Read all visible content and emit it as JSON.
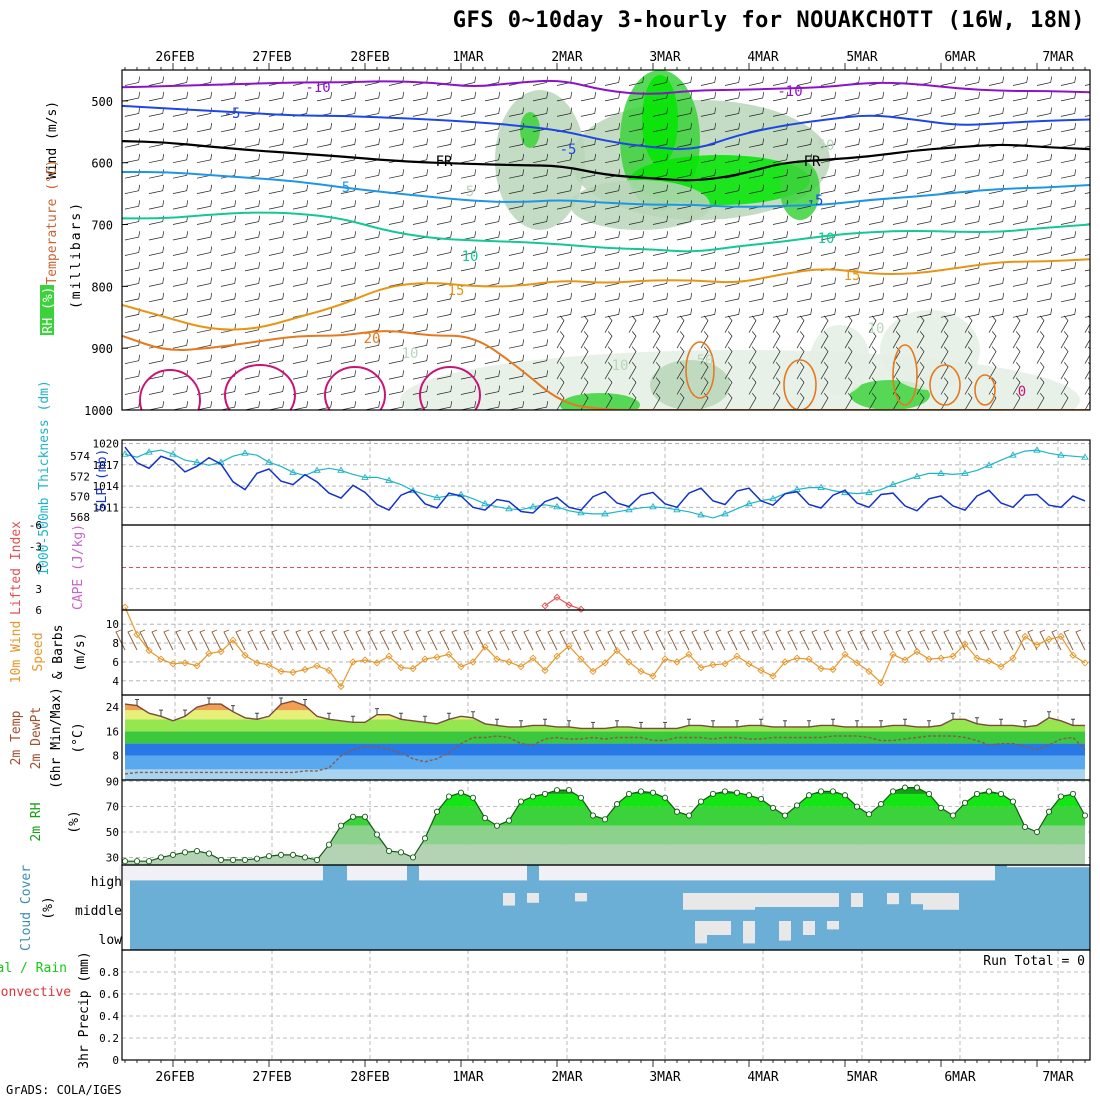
{
  "title": "GFS 0~10day 3-hourly for NOUAKCHOTT (16W, 18N)",
  "credit": "GrADS: COLA/IGES",
  "colors": {
    "temp_m10": "#8c14c8",
    "temp_m5": "#1e46e6",
    "temp_fr": "#000000",
    "temp_p5": "#1e96e6",
    "temp_p10": "#14c896",
    "temp_p15": "#e69614",
    "temp_p20": "#e6781e",
    "temp_p25": "#c81478",
    "rh_light": "#e4eee4",
    "rh_mid": "#b8d6b8",
    "rh_green": "#3cd23c",
    "rh_bright": "#00e600",
    "slp": "#1432c8",
    "thickness": "#1eb4c8",
    "wind": "#e69628",
    "cloud": "#6baed6",
    "cloud_gap": "#f0f0f6",
    "cape": "#c864c8"
  },
  "x_axis": {
    "dates": [
      "26FEB",
      "27FEB",
      "28FEB",
      "1MAR",
      "2MAR",
      "3MAR",
      "4MAR",
      "5MAR",
      "6MAR",
      "7MAR"
    ]
  },
  "panels": {
    "upper": {
      "ylabel_parts": [
        "Wind (m/s)",
        "Temperature (°C)",
        "RH (%)"
      ],
      "unit_label": "(millibars)",
      "y_ticks": [
        "500",
        "600",
        "700",
        "800",
        "900",
        "1000"
      ]
    },
    "slp": {
      "ylabel_slp": "SLP (mb)",
      "ylabel_thk": "1000-500mb Thickness (dm)",
      "slp_ticks": [
        "1020",
        "1017",
        "1014",
        "1011"
      ],
      "thk_ticks": [
        "574",
        "572",
        "570",
        "568"
      ]
    },
    "cape": {
      "ylabel_li": "Lifted Index",
      "ylabel_cape": "CAPE (J/kg)",
      "ticks": [
        "-6",
        "-3",
        "0",
        "3",
        "6"
      ]
    },
    "wind": {
      "ylabel_a": "10m Wind",
      "ylabel_b": "Speed",
      "ylabel_c": "& Barbs",
      "unit": "(m/s)",
      "ticks": [
        "10",
        "8",
        "6",
        "4"
      ]
    },
    "temp": {
      "ylabel_a": "2m Temp",
      "ylabel_b": "2m DewPt",
      "ylabel_c": "(6hr Min/Max)",
      "unit": "(°C)",
      "ticks": [
        "24",
        "16",
        "8"
      ]
    },
    "rh": {
      "ylabel": "2m RH",
      "unit": "(%)",
      "ticks": [
        "90",
        "70",
        "50",
        "30"
      ]
    },
    "cloud": {
      "ylabel": "Cloud Cover",
      "unit": "(%)",
      "levels": [
        "high",
        "middle",
        "low"
      ]
    },
    "precip": {
      "ylabel_a": "Total / Rain",
      "ylabel_b": "Convective",
      "ylabel_c": "3hr Precip (mm)",
      "ticks": [
        "0.8",
        "0.6",
        "0.4",
        "0.2",
        "0"
      ],
      "run_total": "Run Total = 0"
    }
  },
  "contour_labels": [
    {
      "text": "-10"
    },
    {
      "text": "-10"
    },
    {
      "text": "-5"
    },
    {
      "text": "-5"
    },
    {
      "text": "-5"
    },
    {
      "text": "FR"
    },
    {
      "text": "FR"
    },
    {
      "text": "5"
    },
    {
      "text": "5"
    },
    {
      "text": "10"
    },
    {
      "text": "10"
    },
    {
      "text": "15"
    },
    {
      "text": "15"
    },
    {
      "text": "20"
    },
    {
      "text": "10"
    },
    {
      "text": "50"
    },
    {
      "text": "50"
    },
    {
      "text": "10"
    },
    {
      "text": "10"
    },
    {
      "text": "0"
    }
  ],
  "chart_data": {
    "type": "line",
    "time_start": "2026-02-25 12Z",
    "x_ticks": [
      "26FEB",
      "27FEB",
      "28FEB",
      "1MAR",
      "2MAR",
      "3MAR",
      "4MAR",
      "5MAR",
      "6MAR",
      "7MAR"
    ],
    "series": [
      {
        "name": "SLP (mb)",
        "ylim": [
          1008.5,
          1020.5
        ],
        "values": [
          1019.5,
          1017.3,
          1016.5,
          1018.2,
          1017.6,
          1016.0,
          1016.8,
          1018.0,
          1017.1,
          1014.6,
          1013.5,
          1015.8,
          1016.4,
          1014.7,
          1014.2,
          1015.6,
          1014.6,
          1013.0,
          1012.3,
          1014.1,
          1013.1,
          1011.4,
          1010.6,
          1012.7,
          1013.4,
          1011.5,
          1010.9,
          1013.0,
          1012.6,
          1011.0,
          1010.6,
          1012.1,
          1011.8,
          1010.4,
          1010.2,
          1011.8,
          1012.4,
          1011.0,
          1010.6,
          1012.5,
          1013.2,
          1011.6,
          1011.1,
          1012.7,
          1013.1,
          1011.5,
          1011.0,
          1013.0,
          1013.7,
          1011.9,
          1011.4,
          1013.3,
          1013.7,
          1011.9,
          1011.3,
          1012.9,
          1013.2,
          1011.4,
          1010.9,
          1012.7,
          1013.4,
          1011.6,
          1011.0,
          1012.8,
          1013.0,
          1011.2,
          1010.5,
          1012.2,
          1012.6,
          1011.2,
          1010.6,
          1012.6,
          1013.4,
          1011.6,
          1011.0,
          1012.7,
          1012.8,
          1011.3,
          1011.0,
          1012.6,
          1011.9
        ]
      },
      {
        "name": "1000-500mb Thickness (dm)",
        "ylim": [
          567.2,
          575.6
        ],
        "values": [
          574.2,
          573.9,
          574.4,
          574.6,
          574.2,
          573.6,
          573.4,
          573.1,
          573.4,
          574.0,
          574.3,
          574.1,
          573.4,
          573.0,
          572.4,
          572.1,
          572.6,
          572.8,
          572.6,
          572.2,
          571.9,
          571.9,
          571.6,
          571.2,
          570.6,
          570.2,
          569.9,
          570.1,
          570.2,
          569.8,
          569.3,
          569.0,
          568.8,
          568.7,
          569.0,
          569.2,
          569.0,
          568.6,
          568.4,
          568.3,
          568.3,
          568.5,
          568.7,
          568.9,
          569.0,
          568.9,
          568.7,
          568.5,
          568.2,
          567.9,
          568.3,
          568.8,
          569.3,
          569.6,
          569.8,
          570.3,
          570.7,
          570.9,
          570.9,
          570.6,
          570.4,
          570.3,
          570.4,
          570.7,
          571.2,
          571.6,
          572.0,
          572.3,
          572.3,
          572.2,
          572.3,
          572.6,
          573.1,
          573.6,
          574.1,
          574.5,
          574.6,
          574.3,
          574.1,
          574.0,
          573.9
        ]
      },
      {
        "name": "Lifted Index",
        "ylim": [
          6,
          -6
        ],
        "values": [
          null,
          null,
          null,
          null,
          null,
          null,
          null,
          null,
          null,
          null,
          null,
          null,
          null,
          null,
          null,
          null,
          null,
          null,
          null,
          null,
          null,
          null,
          null,
          null,
          null,
          null,
          null,
          null,
          null,
          null,
          null,
          null,
          null,
          null,
          null,
          5.4,
          4.2,
          5.3,
          5.9,
          null,
          null,
          null,
          null,
          null,
          null,
          null,
          null,
          null,
          null,
          null,
          null,
          null,
          null,
          null,
          null,
          null,
          null,
          null,
          null,
          null,
          null,
          null,
          null,
          null,
          null,
          null,
          null,
          null,
          null,
          null,
          null,
          null,
          null,
          null,
          null,
          null,
          null,
          null,
          null,
          null,
          null
        ]
      },
      {
        "name": "10m Wind Speed (m/s)",
        "ylim": [
          2.5,
          11.5
        ],
        "values": [
          11.8,
          8.9,
          7.2,
          6.3,
          5.8,
          5.9,
          5.6,
          6.9,
          7.1,
          8.3,
          6.7,
          5.9,
          5.7,
          5.0,
          4.9,
          5.2,
          5.6,
          5.1,
          3.4,
          6.0,
          6.2,
          5.9,
          6.6,
          5.4,
          5.3,
          6.3,
          6.5,
          6.8,
          5.5,
          6.0,
          7.6,
          6.3,
          6.0,
          5.5,
          6.4,
          5.1,
          6.6,
          7.7,
          6.3,
          5.0,
          5.9,
          7.2,
          6.0,
          5.0,
          4.5,
          6.3,
          6.0,
          6.8,
          5.4,
          5.7,
          5.8,
          6.6,
          5.8,
          5.1,
          4.5,
          6.0,
          6.4,
          6.3,
          5.3,
          5.2,
          6.8,
          5.9,
          5.0,
          3.8,
          6.8,
          6.2,
          7.1,
          6.3,
          6.4,
          6.6,
          7.9,
          6.4,
          6.1,
          5.5,
          6.4,
          8.7,
          7.8,
          8.4,
          8.7,
          6.7,
          5.9
        ]
      },
      {
        "name": "2m Temp (°C)",
        "ylim": [
          0,
          28
        ],
        "values": [
          25,
          24.5,
          22,
          21,
          19.5,
          21,
          24,
          25,
          25,
          22.5,
          20.5,
          20,
          21,
          25,
          26,
          24.5,
          21,
          20,
          19.5,
          19,
          19,
          21.5,
          21.5,
          20,
          19.5,
          19,
          18.5,
          20,
          21,
          20.5,
          18.5,
          18,
          17.5,
          17.5,
          18,
          18,
          17.5,
          17.5,
          17,
          17,
          17,
          17.5,
          17.5,
          17,
          17,
          17,
          17,
          18,
          18,
          17.5,
          17.5,
          17.5,
          18,
          18,
          17.5,
          17.5,
          17.5,
          17.5,
          18,
          18,
          17.5,
          17.5,
          17.5,
          17.5,
          18,
          18,
          17.5,
          17.5,
          18,
          20,
          20,
          18.5,
          18,
          18,
          18,
          17.5,
          18,
          20.5,
          19.5,
          18,
          18
        ]
      },
      {
        "name": "2m DewPt (°C)",
        "ylim": [
          0,
          28
        ],
        "values": [
          2,
          2.5,
          2.5,
          2.5,
          2.5,
          2.5,
          2.5,
          2.5,
          2.5,
          2.5,
          2.5,
          2.5,
          2.5,
          2.5,
          2.5,
          3,
          3,
          4,
          8,
          10,
          11,
          11,
          10,
          9,
          7,
          6,
          7,
          9,
          12,
          14,
          14,
          14.5,
          14,
          12,
          11.5,
          13.5,
          14,
          13.5,
          13.5,
          14,
          13.5,
          14,
          14,
          14,
          13,
          13,
          14,
          14,
          14,
          13.5,
          14,
          14,
          13.5,
          13.5,
          14,
          14,
          14,
          14,
          14,
          14.5,
          14.5,
          14.5,
          14,
          13,
          13,
          13.5,
          14,
          14.5,
          14.5,
          14.5,
          14,
          13,
          11.5,
          12,
          12,
          11,
          10,
          11.5,
          13.5,
          14,
          10
        ]
      },
      {
        "name": "2m RH (%)",
        "ylim": [
          24,
          91
        ],
        "values": [
          27,
          27,
          27,
          30,
          32,
          34,
          35,
          33,
          28,
          28,
          28,
          29,
          31,
          32,
          32,
          30,
          28,
          40,
          55,
          62,
          62,
          48,
          35,
          34,
          30,
          45,
          66,
          78,
          81,
          77,
          61,
          55,
          59,
          74,
          78,
          80,
          83,
          83,
          77,
          63,
          60,
          72,
          80,
          82,
          81,
          77,
          66,
          63,
          74,
          80,
          82,
          81,
          79,
          76,
          69,
          63,
          71,
          79,
          82,
          82,
          79,
          70,
          64,
          72,
          82,
          85,
          85,
          80,
          69,
          63,
          73,
          80,
          82,
          80,
          74,
          54,
          50,
          66,
          78,
          80,
          63
        ]
      },
      {
        "name": "3hr Precip (mm)",
        "ylim": [
          0,
          1
        ],
        "values": [
          0,
          0,
          0,
          0,
          0,
          0,
          0,
          0,
          0,
          0,
          0,
          0,
          0,
          0,
          0,
          0,
          0,
          0,
          0,
          0,
          0,
          0,
          0,
          0,
          0,
          0,
          0,
          0,
          0,
          0,
          0,
          0,
          0,
          0,
          0,
          0,
          0,
          0,
          0,
          0,
          0,
          0,
          0,
          0,
          0,
          0,
          0,
          0,
          0,
          0,
          0,
          0,
          0,
          0,
          0,
          0,
          0,
          0,
          0,
          0,
          0,
          0,
          0,
          0,
          0,
          0,
          0,
          0,
          0,
          0,
          0,
          0,
          0,
          0,
          0,
          0,
          0,
          0,
          0,
          0,
          0
        ]
      }
    ],
    "cloud_cover": {
      "levels": [
        "high",
        "middle",
        "low"
      ],
      "gaps": {
        "high": [
          [
            0,
            17,
            0.55
          ],
          [
            19,
            22,
            0.55
          ],
          [
            22,
            24,
            0.55
          ],
          [
            25,
            34,
            0.55
          ],
          [
            35,
            73,
            0.55
          ],
          [
            74,
            81,
            0.08
          ]
        ],
        "middle": [
          [
            32,
            33,
            0.45
          ],
          [
            34,
            35,
            0.35
          ],
          [
            38,
            39,
            0.3
          ],
          [
            47,
            53,
            0.6
          ],
          [
            53,
            60,
            0.5
          ],
          [
            61,
            62,
            0.5
          ],
          [
            64,
            65,
            0.4
          ],
          [
            66,
            67,
            0.4
          ],
          [
            67,
            70,
            0.6
          ]
        ],
        "low": [
          [
            48,
            49,
            0.8
          ],
          [
            49,
            51,
            0.5
          ],
          [
            52,
            53,
            0.8
          ],
          [
            55,
            56,
            0.7
          ],
          [
            57,
            58,
            0.5
          ],
          [
            59,
            60,
            0.3
          ]
        ]
      }
    },
    "upper_air": {
      "pressure_levels": [
        500,
        600,
        700,
        800,
        900,
        1000
      ],
      "isotherms": [
        {
          "label": "-10",
          "color": "#8c14c8",
          "values": [
            478,
            476,
            474,
            472,
            470,
            470,
            468,
            470,
            478,
            470,
            466,
            484,
            490,
            483,
            482,
            480,
            478,
            470,
            472,
            480,
            484,
            484,
            486
          ]
        },
        {
          "label": "-5",
          "color": "#1e46e6",
          "values": [
            508,
            512,
            516,
            520,
            524,
            524,
            527,
            530,
            534,
            540,
            548,
            565,
            575,
            580,
            555,
            540,
            530,
            522,
            530,
            540,
            536,
            532,
            530
          ]
        },
        {
          "label": "FR",
          "color": "#000000",
          "values": [
            565,
            567,
            574,
            580,
            585,
            590,
            596,
            600,
            602,
            604,
            605,
            620,
            625,
            630,
            620,
            600,
            595,
            590,
            580,
            575,
            570,
            575,
            578
          ]
        },
        {
          "label": "5",
          "color": "#1e96e6",
          "values": [
            615,
            615,
            620,
            625,
            630,
            640,
            648,
            655,
            662,
            664,
            660,
            665,
            668,
            668,
            672,
            670,
            668,
            660,
            655,
            648,
            642,
            640,
            636
          ]
        },
        {
          "label": "10",
          "color": "#14c896",
          "values": [
            690,
            690,
            684,
            680,
            682,
            690,
            710,
            722,
            726,
            728,
            732,
            738,
            740,
            745,
            735,
            728,
            718,
            712,
            710,
            712,
            712,
            705,
            700
          ]
        },
        {
          "label": "15",
          "color": "#e69614",
          "values": [
            830,
            850,
            870,
            870,
            850,
            830,
            800,
            793,
            800,
            800,
            790,
            795,
            790,
            790,
            795,
            780,
            770,
            780,
            780,
            770,
            760,
            760,
            756
          ]
        },
        {
          "label": "20",
          "color": "#e6781e",
          "values": [
            880,
            905,
            900,
            890,
            880,
            880,
            870,
            880,
            880,
            930,
            990,
            1000,
            1000,
            1000,
            1000,
            1000,
            1000,
            1000,
            1000,
            1000,
            1000,
            1000,
            1000
          ]
        }
      ]
    }
  }
}
